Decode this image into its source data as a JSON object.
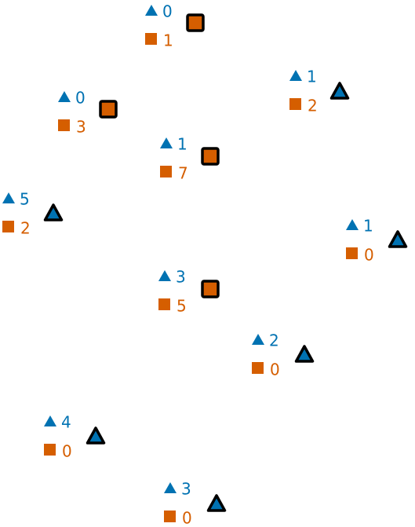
{
  "colors": {
    "triangle": "#0072b2",
    "square": "#d55e00",
    "outline": "#000000"
  },
  "nodes": [
    {
      "marker": "square",
      "triangle_count": "0",
      "square_count": "1"
    },
    {
      "marker": "triangle",
      "triangle_count": "1",
      "square_count": "2"
    },
    {
      "marker": "square",
      "triangle_count": "0",
      "square_count": "3"
    },
    {
      "marker": "square",
      "triangle_count": "1",
      "square_count": "7"
    },
    {
      "marker": "triangle",
      "triangle_count": "5",
      "square_count": "2"
    },
    {
      "marker": "triangle",
      "triangle_count": "1",
      "square_count": "0"
    },
    {
      "marker": "square",
      "triangle_count": "3",
      "square_count": "5"
    },
    {
      "marker": "triangle",
      "triangle_count": "2",
      "square_count": "0"
    },
    {
      "marker": "triangle",
      "triangle_count": "4",
      "square_count": "0"
    },
    {
      "marker": "triangle",
      "triangle_count": "3",
      "square_count": "0"
    }
  ]
}
